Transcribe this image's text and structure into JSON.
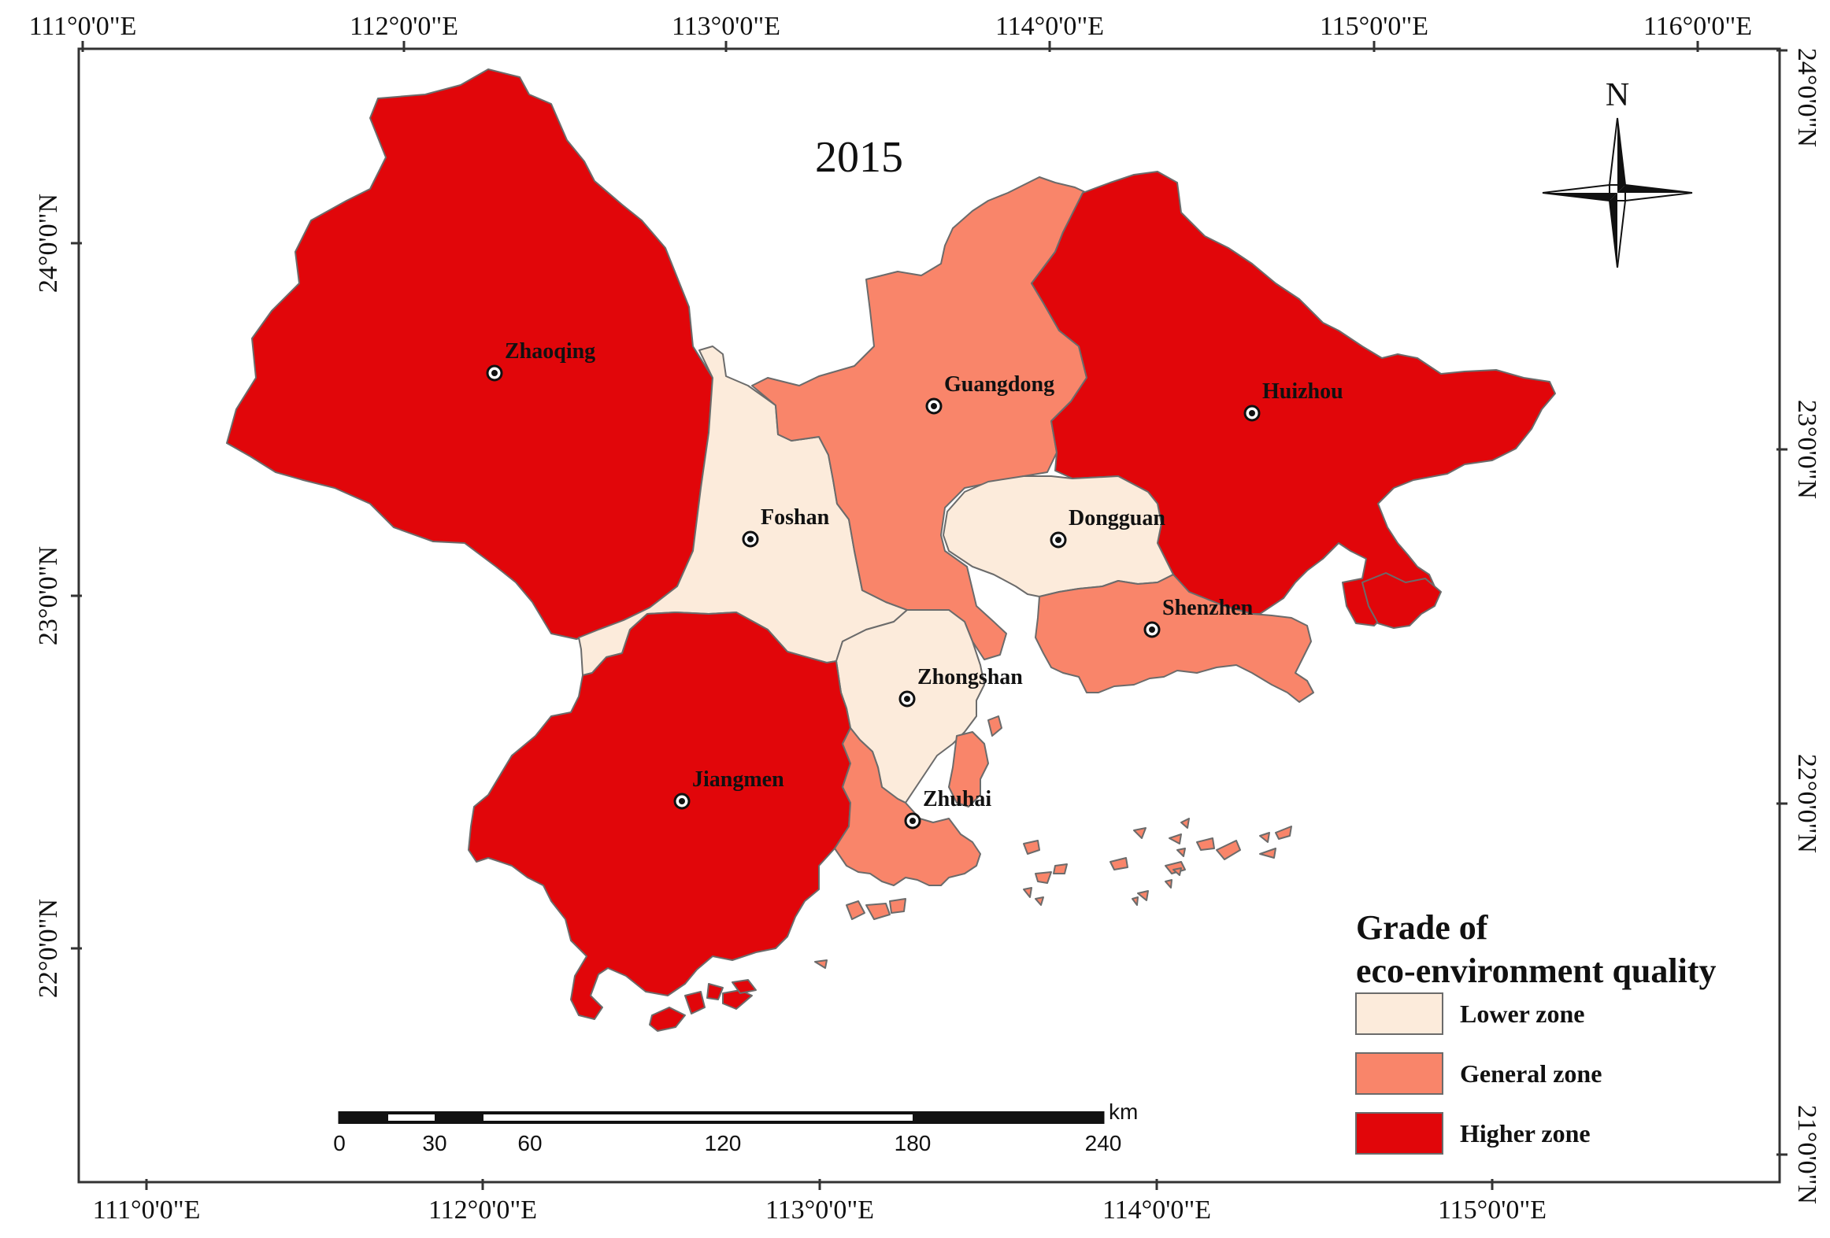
{
  "map": {
    "year": "2015",
    "north_label": "N",
    "colors": {
      "lower": "#fcebdb",
      "general": "#f9856a",
      "higher": "#e1060a",
      "border": "#6b6b6b",
      "frame": "#333333"
    },
    "top_longitude_labels": [
      "111°0'0\"E",
      "112°0'0\"E",
      "113°0'0\"E",
      "114°0'0\"E",
      "115°0'0\"E",
      "116°0'0\"E"
    ],
    "bottom_longitude_labels": [
      "111°0'0\"E",
      "112°0'0\"E",
      "113°0'0\"E",
      "114°0'0\"E",
      "115°0'0\"E"
    ],
    "left_latitude_labels": [
      "24°0'0\"N",
      "23°0'0\"N",
      "22°0'0\"N"
    ],
    "right_latitude_labels": [
      "24°0'0\"N",
      "23°0'0\"N",
      "22°0'0\"N",
      "21°0'0\"N"
    ],
    "cities": [
      {
        "name": "Zhaoqing",
        "zone": "higher"
      },
      {
        "name": "Guangdong",
        "zone": "general"
      },
      {
        "name": "Huizhou",
        "zone": "higher"
      },
      {
        "name": "Foshan",
        "zone": "lower"
      },
      {
        "name": "Dongguan",
        "zone": "lower"
      },
      {
        "name": "Shenzhen",
        "zone": "general"
      },
      {
        "name": "Zhongshan",
        "zone": "lower"
      },
      {
        "name": "Jiangmen",
        "zone": "higher"
      },
      {
        "name": "Zhuhai",
        "zone": "general"
      }
    ],
    "legend": {
      "title_line1": "Grade of",
      "title_line2": "eco-environment quality",
      "items": [
        {
          "label": "Lower zone",
          "zone": "lower"
        },
        {
          "label": "General zone",
          "zone": "general"
        },
        {
          "label": "Higher zone",
          "zone": "higher"
        }
      ]
    },
    "scale_bar": {
      "unit": "km",
      "labels": [
        "0",
        "30",
        "60",
        "120",
        "180",
        "240"
      ]
    }
  }
}
